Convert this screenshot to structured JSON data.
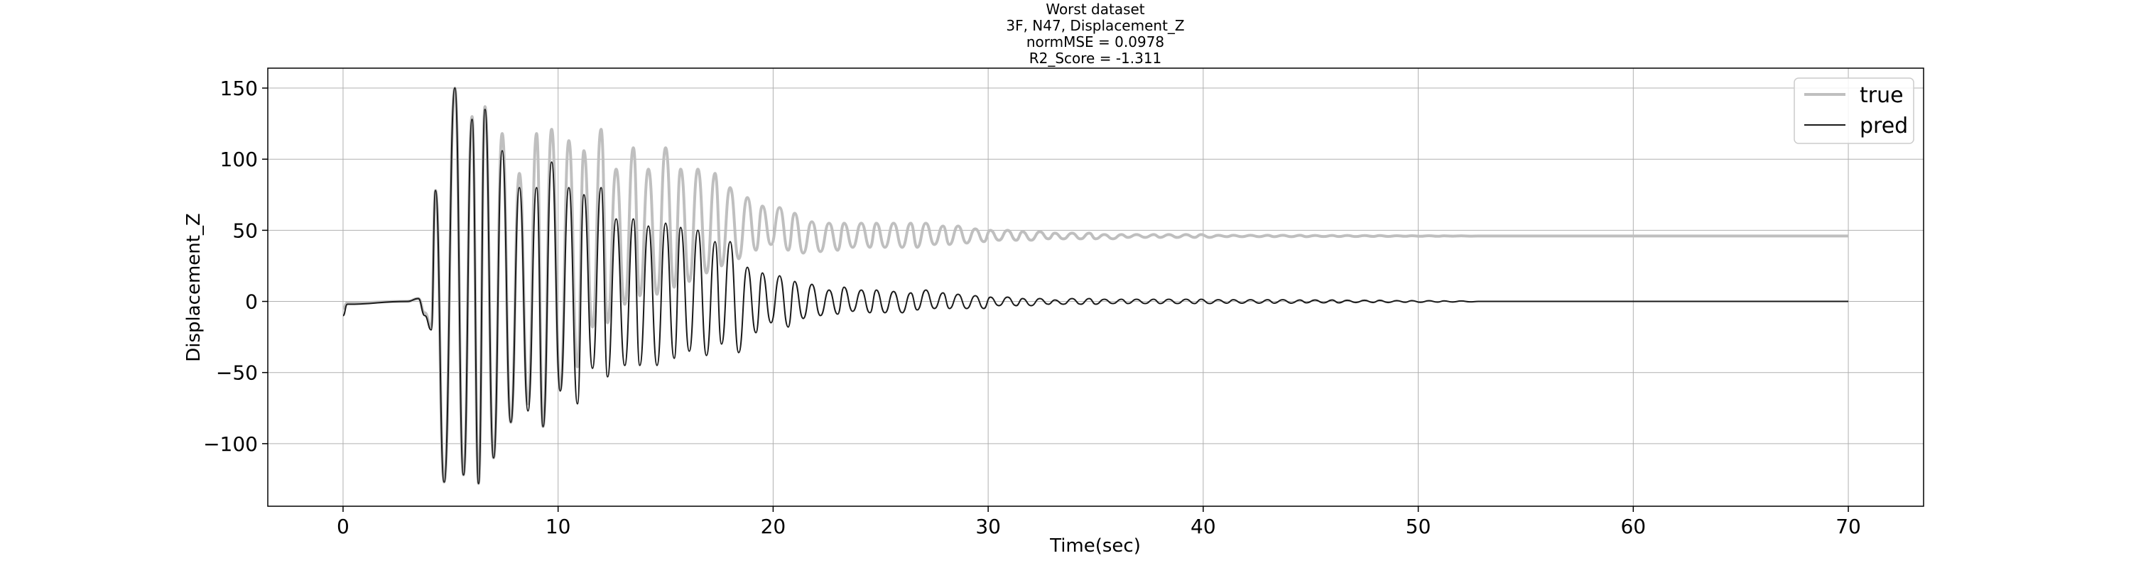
{
  "chart_data": {
    "type": "line",
    "title": [
      "Worst dataset",
      "3F, N47, Displacement_Z",
      "normMSE = 0.0978",
      "R2_Score = -1.311"
    ],
    "xlabel": "Time(sec)",
    "ylabel": "Displacement_Z",
    "xlim": [
      -3.5,
      73.5
    ],
    "ylim": [
      -144,
      164
    ],
    "xticks": [
      0,
      10,
      20,
      30,
      40,
      50,
      60,
      70
    ],
    "yticks": [
      -100,
      -50,
      0,
      50,
      100,
      150
    ],
    "grid": true,
    "legend_position": "top-right",
    "series": [
      {
        "name": "true",
        "color": "#bfbfbf",
        "peaks": [
          [
            4.3,
            78
          ],
          [
            4.7,
            -127
          ],
          [
            5.2,
            150
          ],
          [
            5.6,
            -122
          ],
          [
            6.0,
            130
          ],
          [
            6.3,
            -128
          ],
          [
            6.6,
            137
          ],
          [
            7.0,
            -110
          ],
          [
            7.4,
            118
          ],
          [
            7.8,
            -85
          ],
          [
            8.2,
            90
          ],
          [
            8.6,
            -72
          ],
          [
            9.0,
            118
          ],
          [
            9.3,
            -88
          ],
          [
            9.7,
            121
          ],
          [
            10.1,
            -62
          ],
          [
            10.5,
            113
          ],
          [
            10.9,
            -46
          ],
          [
            11.2,
            106
          ],
          [
            11.6,
            -18
          ],
          [
            12.0,
            121
          ],
          [
            12.3,
            -15
          ],
          [
            12.7,
            93
          ],
          [
            13.1,
            -2
          ],
          [
            13.5,
            108
          ],
          [
            13.8,
            4
          ],
          [
            14.2,
            93
          ],
          [
            14.6,
            5
          ],
          [
            15.0,
            108
          ],
          [
            15.4,
            10
          ],
          [
            15.7,
            93
          ],
          [
            16.1,
            14
          ],
          [
            16.5,
            93
          ],
          [
            16.9,
            20
          ],
          [
            17.3,
            90
          ],
          [
            17.6,
            25
          ],
          [
            18.0,
            80
          ],
          [
            18.4,
            30
          ],
          [
            18.8,
            73
          ],
          [
            19.2,
            36
          ],
          [
            19.5,
            67
          ],
          [
            19.9,
            40
          ],
          [
            20.3,
            66
          ],
          [
            20.7,
            36
          ],
          [
            21.0,
            62
          ],
          [
            21.4,
            34
          ],
          [
            21.8,
            56
          ],
          [
            22.2,
            35
          ],
          [
            22.6,
            55
          ],
          [
            23.0,
            36
          ],
          [
            23.3,
            55
          ],
          [
            23.7,
            38
          ],
          [
            24.1,
            55
          ],
          [
            24.5,
            38
          ],
          [
            24.8,
            55
          ],
          [
            25.2,
            38
          ],
          [
            25.6,
            55
          ],
          [
            26.0,
            38
          ],
          [
            26.4,
            55
          ],
          [
            26.7,
            38
          ],
          [
            27.1,
            55
          ],
          [
            27.5,
            40
          ],
          [
            27.9,
            53
          ],
          [
            28.2,
            40
          ],
          [
            28.6,
            53
          ],
          [
            29.0,
            41
          ],
          [
            29.4,
            51
          ],
          [
            29.8,
            42
          ],
          [
            30.1,
            50
          ],
          [
            30.5,
            43
          ],
          [
            30.9,
            50
          ],
          [
            31.3,
            43
          ],
          [
            31.6,
            49
          ],
          [
            32.0,
            43
          ],
          [
            32.4,
            49
          ],
          [
            32.8,
            44
          ],
          [
            33.1,
            48
          ],
          [
            33.5,
            44
          ],
          [
            33.9,
            48
          ],
          [
            34.3,
            44
          ],
          [
            34.7,
            48
          ],
          [
            35.0,
            44
          ],
          [
            35.4,
            47
          ],
          [
            35.8,
            44
          ],
          [
            36.2,
            47
          ],
          [
            36.5,
            45
          ],
          [
            36.9,
            47
          ],
          [
            37.3,
            45
          ],
          [
            37.7,
            47
          ],
          [
            38.0,
            45
          ],
          [
            38.4,
            47
          ],
          [
            38.8,
            45
          ],
          [
            39.2,
            47
          ],
          [
            39.6,
            45
          ],
          [
            39.9,
            47
          ],
          [
            40.3,
            45
          ],
          [
            40.7,
            46.5
          ],
          [
            41.1,
            45.5
          ],
          [
            41.4,
            46.5
          ],
          [
            41.8,
            45.5
          ],
          [
            42.2,
            46.5
          ],
          [
            42.6,
            45.5
          ],
          [
            43.0,
            46.5
          ],
          [
            43.3,
            45.5
          ],
          [
            43.7,
            46.5
          ],
          [
            44.1,
            45.5
          ],
          [
            44.5,
            46.5
          ],
          [
            44.8,
            45.5
          ],
          [
            45.2,
            46.4
          ],
          [
            45.6,
            45.6
          ],
          [
            46.0,
            46.4
          ],
          [
            46.3,
            45.6
          ],
          [
            46.7,
            46.4
          ],
          [
            47.1,
            45.6
          ],
          [
            47.5,
            46.3
          ],
          [
            47.9,
            45.7
          ],
          [
            48.2,
            46.3
          ],
          [
            48.6,
            45.7
          ],
          [
            49.0,
            46.2
          ],
          [
            49.4,
            45.8
          ],
          [
            49.7,
            46.2
          ],
          [
            50.1,
            45.8
          ],
          [
            50.5,
            46.2
          ],
          [
            50.9,
            45.8
          ],
          [
            51.2,
            46.1
          ],
          [
            51.6,
            45.9
          ],
          [
            52.0,
            46.1
          ],
          [
            52.4,
            45.9
          ]
        ],
        "pre": [
          [
            0.0,
            -5
          ],
          [
            0.2,
            -1
          ],
          [
            3.0,
            0
          ],
          [
            3.5,
            2
          ],
          [
            3.8,
            -8
          ],
          [
            4.1,
            -18
          ]
        ],
        "tail": [
          [
            52.8,
            46
          ],
          [
            70.0,
            46
          ]
        ]
      },
      {
        "name": "pred",
        "color": "#1a1a1a",
        "peaks": [
          [
            4.3,
            78
          ],
          [
            4.7,
            -127
          ],
          [
            5.2,
            150
          ],
          [
            5.6,
            -122
          ],
          [
            6.0,
            128
          ],
          [
            6.3,
            -128
          ],
          [
            6.6,
            135
          ],
          [
            7.0,
            -110
          ],
          [
            7.4,
            106
          ],
          [
            7.8,
            -85
          ],
          [
            8.2,
            80
          ],
          [
            8.6,
            -77
          ],
          [
            9.0,
            80
          ],
          [
            9.3,
            -88
          ],
          [
            9.7,
            98
          ],
          [
            10.1,
            -63
          ],
          [
            10.5,
            80
          ],
          [
            10.9,
            -72
          ],
          [
            11.2,
            75
          ],
          [
            11.6,
            -47
          ],
          [
            12.0,
            80
          ],
          [
            12.3,
            -53
          ],
          [
            12.7,
            58
          ],
          [
            13.1,
            -45
          ],
          [
            13.5,
            58
          ],
          [
            13.8,
            -45
          ],
          [
            14.2,
            53
          ],
          [
            14.6,
            -45
          ],
          [
            15.0,
            55
          ],
          [
            15.4,
            -40
          ],
          [
            15.7,
            52
          ],
          [
            16.1,
            -35
          ],
          [
            16.5,
            50
          ],
          [
            16.9,
            -38
          ],
          [
            17.3,
            42
          ],
          [
            17.6,
            -30
          ],
          [
            18.0,
            42
          ],
          [
            18.4,
            -36
          ],
          [
            18.8,
            24
          ],
          [
            19.2,
            -22
          ],
          [
            19.5,
            20
          ],
          [
            19.9,
            -15
          ],
          [
            20.3,
            18
          ],
          [
            20.7,
            -18
          ],
          [
            21.0,
            14
          ],
          [
            21.4,
            -12
          ],
          [
            21.8,
            12
          ],
          [
            22.2,
            -10
          ],
          [
            22.6,
            8
          ],
          [
            23.0,
            -9
          ],
          [
            23.3,
            10
          ],
          [
            23.7,
            -7
          ],
          [
            24.1,
            8
          ],
          [
            24.5,
            -8
          ],
          [
            24.8,
            8
          ],
          [
            25.2,
            -8
          ],
          [
            25.6,
            7
          ],
          [
            26.0,
            -8
          ],
          [
            26.4,
            6
          ],
          [
            26.7,
            -6
          ],
          [
            27.1,
            8
          ],
          [
            27.5,
            -5
          ],
          [
            27.9,
            6
          ],
          [
            28.2,
            -5
          ],
          [
            28.6,
            5
          ],
          [
            29.0,
            -5
          ],
          [
            29.4,
            4
          ],
          [
            29.8,
            -5
          ],
          [
            30.1,
            3
          ],
          [
            30.5,
            -3
          ],
          [
            30.9,
            3
          ],
          [
            31.3,
            -3
          ],
          [
            31.6,
            2
          ],
          [
            32.0,
            -3
          ],
          [
            32.4,
            2
          ],
          [
            32.8,
            -2
          ],
          [
            33.1,
            1
          ],
          [
            33.5,
            -2
          ],
          [
            33.9,
            2
          ],
          [
            34.3,
            -2
          ],
          [
            34.7,
            2
          ],
          [
            35.0,
            -2
          ],
          [
            35.4,
            1.5
          ],
          [
            35.8,
            -1.5
          ],
          [
            36.2,
            1.5
          ],
          [
            36.5,
            -1.5
          ],
          [
            36.9,
            1.5
          ],
          [
            37.3,
            -1.5
          ],
          [
            37.7,
            1.5
          ],
          [
            38.0,
            -1.5
          ],
          [
            38.4,
            1.5
          ],
          [
            38.8,
            -1.5
          ],
          [
            39.2,
            1.5
          ],
          [
            39.6,
            -1.5
          ],
          [
            39.9,
            1.5
          ],
          [
            40.3,
            -1.5
          ],
          [
            40.7,
            1.2
          ],
          [
            41.1,
            -1.2
          ],
          [
            41.4,
            1.2
          ],
          [
            41.8,
            -1.2
          ],
          [
            42.2,
            1.2
          ],
          [
            42.6,
            -1.2
          ],
          [
            43.0,
            1.2
          ],
          [
            43.3,
            -1.2
          ],
          [
            43.7,
            1.2
          ],
          [
            44.1,
            -1.2
          ],
          [
            44.5,
            1
          ],
          [
            44.8,
            -1
          ],
          [
            45.2,
            1
          ],
          [
            45.6,
            -1
          ],
          [
            46.0,
            1
          ],
          [
            46.3,
            -1
          ],
          [
            46.7,
            0.8
          ],
          [
            47.1,
            -0.8
          ],
          [
            47.5,
            0.8
          ],
          [
            47.9,
            -0.8
          ],
          [
            48.2,
            0.8
          ],
          [
            48.6,
            -0.8
          ],
          [
            49.0,
            0.6
          ],
          [
            49.4,
            -0.6
          ],
          [
            49.7,
            0.6
          ],
          [
            50.1,
            -0.6
          ],
          [
            50.5,
            0.5
          ],
          [
            50.9,
            -0.5
          ],
          [
            51.2,
            0.4
          ],
          [
            51.6,
            -0.4
          ],
          [
            52.0,
            0.3
          ],
          [
            52.4,
            -0.3
          ]
        ],
        "pre": [
          [
            0.0,
            -10
          ],
          [
            0.2,
            -2
          ],
          [
            3.0,
            0
          ],
          [
            3.5,
            2
          ],
          [
            3.8,
            -10
          ],
          [
            4.1,
            -20
          ]
        ],
        "tail": [
          [
            52.8,
            0
          ],
          [
            70.0,
            0
          ]
        ]
      }
    ]
  }
}
